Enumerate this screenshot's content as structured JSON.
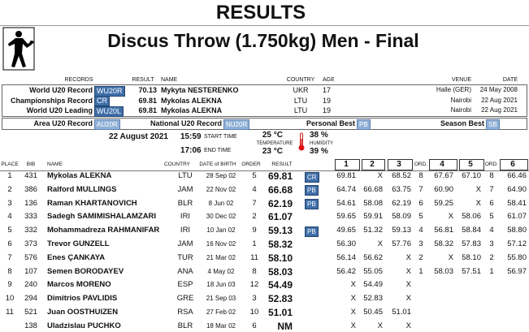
{
  "header": {
    "title": "RESULTS",
    "event": "Discus Throw (1.750kg) Men - Final"
  },
  "records": {
    "columns": [
      "RECORDS",
      "RESULT",
      "NAME",
      "COUNTRY",
      "AGE",
      "VENUE",
      "DATE"
    ],
    "rows": [
      [
        "World U20 Record",
        "WU20R",
        "70.13",
        "Mykyta NESTERENKO",
        "UKR",
        "17",
        "Halle (GER)",
        "24 May 2008"
      ],
      [
        "Championships Record",
        "CR",
        "69.81",
        "Mykolas ALEKNA",
        "LTU",
        "19",
        "Nairobi",
        "22 Aug 2021"
      ],
      [
        "World U20 Leading",
        "WU20L",
        "69.81",
        "Mykolas ALEKNA",
        "LTU",
        "19",
        "Nairobi",
        "22 Aug 2021"
      ]
    ]
  },
  "legend": [
    {
      "label": "Area U20 Record",
      "code": "AU20R"
    },
    {
      "label": "National U20 Record",
      "code": "NU20R"
    },
    {
      "label": "Personal Best",
      "code": "PB"
    },
    {
      "label": "Season Best",
      "code": "SB"
    }
  ],
  "conditions": {
    "date": "22 August 2021",
    "start_time": "15:59",
    "start_label": "START TIME",
    "end_time": "17:06",
    "end_label": "END TIME",
    "temperature_start": "25 °C",
    "temperature_label": "TEMPERATURE",
    "temperature_end": "23 °C",
    "humidity_start": "38 %",
    "humidity_label": "HUMIDITY",
    "humidity_end": "39 %"
  },
  "results": {
    "columns": [
      "PLACE",
      "BIB",
      "NAME",
      "COUNTRY",
      "DATE of BIRTH",
      "ORDER",
      "RESULT",
      null,
      "1",
      "2",
      "3",
      "ORD.",
      "4",
      "5",
      "ORD.",
      "6"
    ],
    "rows": [
      [
        "1",
        "431",
        "Mykolas ALEKNA",
        "LTU",
        "28 Sep 02",
        "5",
        "69.81",
        "CR",
        "69.81",
        "X",
        "68.52",
        "8",
        "67.67",
        "67.10",
        "8",
        "66.46"
      ],
      [
        "2",
        "386",
        "Ralford MULLINGS",
        "JAM",
        "22 Nov 02",
        "4",
        "66.68",
        "PB",
        "64.74",
        "66.68",
        "63.75",
        "7",
        "60.90",
        "X",
        "7",
        "64.90"
      ],
      [
        "3",
        "136",
        "Raman KHARTANOVICH",
        "BLR",
        "8 Jun 02",
        "7",
        "62.19",
        "PB",
        "54.61",
        "58.08",
        "62.19",
        "6",
        "59.25",
        "X",
        "6",
        "58.41"
      ],
      [
        "4",
        "333",
        "Sadegh SAMIMISHALAMZARI",
        "IRI",
        "30 Dec 02",
        "2",
        "61.07",
        null,
        "59.65",
        "59.91",
        "58.09",
        "5",
        "X",
        "58.06",
        "5",
        "61.07"
      ],
      [
        "5",
        "332",
        "Mohammadreza RAHMANIFAR",
        "IRI",
        "10 Jan 02",
        "9",
        "59.13",
        "PB",
        "49.65",
        "51.32",
        "59.13",
        "4",
        "56.81",
        "58.84",
        "4",
        "58.80"
      ],
      [
        "6",
        "373",
        "Trevor GUNZELL",
        "JAM",
        "16 Nov 02",
        "1",
        "58.32",
        null,
        "56.30",
        "X",
        "57.76",
        "3",
        "58.32",
        "57.83",
        "3",
        "57.12"
      ],
      [
        "7",
        "576",
        "Enes ÇANKAYA",
        "TUR",
        "21 Mar 02",
        "11",
        "58.10",
        null,
        "56.14",
        "56.62",
        "X",
        "2",
        "X",
        "58.10",
        "2",
        "55.80"
      ],
      [
        "8",
        "107",
        "Semen BORODAYEV",
        "ANA",
        "4 May 02",
        "8",
        "58.03",
        null,
        "56.42",
        "55.05",
        "X",
        "1",
        "58.03",
        "57.51",
        "1",
        "56.97"
      ],
      [
        "9",
        "240",
        "Marcos MORENO",
        "ESP",
        "18 Jun 03",
        "12",
        "54.49",
        null,
        "X",
        "54.49",
        "X",
        null,
        null,
        null,
        null,
        null
      ],
      [
        "10",
        "294",
        "Dimitrios PAVLIDIS",
        "GRE",
        "21 Sep 03",
        "3",
        "52.83",
        null,
        "X",
        "52.83",
        "X",
        null,
        null,
        null,
        null,
        null
      ],
      [
        "11",
        "521",
        "Juan OOSTHUIZEN",
        "RSA",
        "27 Feb 02",
        "10",
        "51.01",
        null,
        "X",
        "50.45",
        "51.01",
        null,
        null,
        null,
        null,
        null
      ],
      [
        null,
        "138",
        "Uladzislau PUCHKO",
        "BLR",
        "18 Mar 02",
        "6",
        "NM",
        null,
        "X",
        "X",
        "X",
        null,
        null,
        null,
        null,
        null
      ]
    ]
  }
}
